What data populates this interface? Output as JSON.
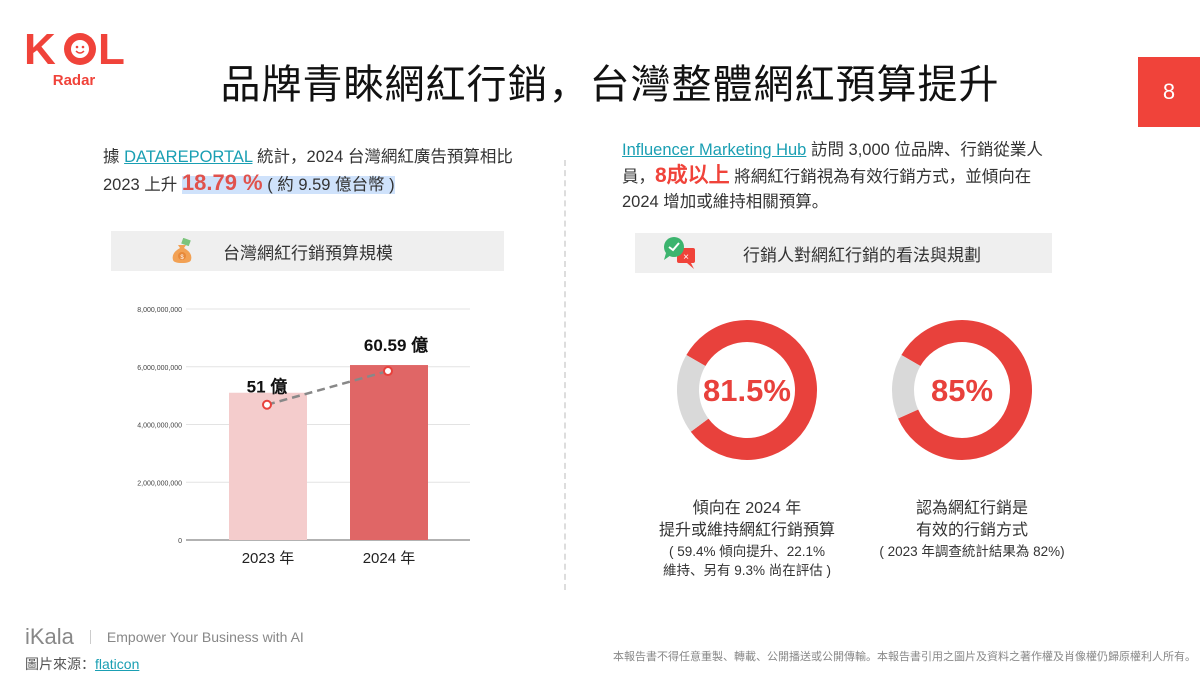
{
  "logo": {
    "text": "KOL",
    "sub": "Radar",
    "color": "#f0433a"
  },
  "title": "品牌青睞網紅行銷，台灣整體網紅預算提升",
  "page_number": "8",
  "left": {
    "p_pre": "據 ",
    "p_link": "DATAREPORTAL",
    "p_mid": " 統計，2024 台灣網紅廣告預算相比 2023 上升 ",
    "p_big": "18.79 %",
    "p_post": " ( 約 9.59 億台幣 )",
    "header_icon": "money-bag-icon",
    "header": "台灣網紅行銷預算規模"
  },
  "right": {
    "p_link": "Influencer Marketing Hub",
    "p_mid": " 訪問 3,000 位品牌、行銷從業人員，",
    "p_big": "8成以上",
    "p_post": " 將網紅行銷視為有效行銷方式，並傾向在 2024 增加或維持相關預算。",
    "header_icon": "chat-check-cross-icon",
    "header": "行銷人對網紅行銷的看法與規劃"
  },
  "chart_data": [
    {
      "type": "bar",
      "categories": [
        "2023 年",
        "2024 年"
      ],
      "values": [
        5100000000,
        6059000000
      ],
      "data_labels": [
        "51 億",
        "60.59 億"
      ],
      "yticks": [
        "0",
        "2,000,000,000",
        "4,000,000,000",
        "6,000,000,000",
        "8,000,000,000"
      ],
      "ylim": [
        0,
        8000000000
      ],
      "grid": true,
      "colors": [
        "#f4cccc",
        "#e06666"
      ],
      "trend_line": "dashed gray"
    },
    {
      "type": "pie",
      "variant": "donut",
      "label": "81.5%",
      "values": [
        81.5,
        18.5
      ],
      "colors": [
        "#e8413c",
        "#d9d9d9"
      ],
      "caption": [
        "傾向在 2024 年",
        "提升或維持網紅行銷預算"
      ],
      "note": [
        "( 59.4% 傾向提升、22.1%",
        "維持、另有 9.3% 尚在評估 )"
      ]
    },
    {
      "type": "pie",
      "variant": "donut",
      "label": "85%",
      "values": [
        85,
        15
      ],
      "colors": [
        "#e8413c",
        "#d9d9d9"
      ],
      "caption": [
        "認為網紅行銷是",
        "有效的行銷方式"
      ],
      "note": [
        "( 2023 年調查統計結果為 82%)"
      ]
    }
  ],
  "footer": {
    "brand": "iKala",
    "tagline": "Empower Your Business with AI",
    "source_label": "圖片來源：",
    "source_link": "flaticon",
    "disclaimer": "本報告書不得任意重製、轉載、公開播送或公開傳輸。本報告書引用之圖片及資料之著作權及肖像權仍歸原權利人所有。"
  }
}
